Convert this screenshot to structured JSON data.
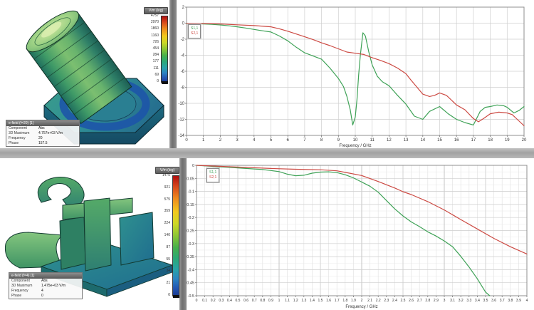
{
  "colors": {
    "curve_green": "#3fa257",
    "curve_red": "#cc4a43",
    "grid_minor": "#e4e4e4",
    "grid": "#cfcfcf",
    "grid_major": "#adadad",
    "plot_border": "#8f8f8f",
    "splitter": "#7a7a7a"
  },
  "panels": {
    "top_3d": {
      "model": "sealing-plug-bolt-efield",
      "colorbar": {
        "title": "V/m (log)",
        "values": [
          "4757",
          "2970",
          "1860",
          "1160",
          "726",
          "454",
          "284",
          "177",
          "111",
          "69",
          "0"
        ]
      },
      "info": {
        "header": "e-field (f=20) [1]",
        "rows": [
          {
            "label": "Component",
            "value": "Abs"
          },
          {
            "label": "3D Maximum",
            "value": "4.757e+03 V/m"
          },
          {
            "label": "Frequency",
            "value": "20"
          },
          {
            "label": "Phase",
            "value": "157.5"
          }
        ]
      }
    },
    "bottom_3d": {
      "model": "retaining-clip-efield",
      "colorbar": {
        "title": "V/m (log)",
        "values": [
          "1475",
          "921",
          "575",
          "359",
          "224",
          "140",
          "87",
          "55",
          "34",
          "21",
          "0"
        ]
      },
      "info": {
        "header": "e-field (f=4) [1]",
        "rows": [
          {
            "label": "Component",
            "value": "Abs"
          },
          {
            "label": "3D Maximum",
            "value": "1.475e+03 V/m"
          },
          {
            "label": "Frequency",
            "value": "4"
          },
          {
            "label": "Phase",
            "value": "0"
          }
        ]
      }
    }
  },
  "chart_data": [
    {
      "type": "line",
      "title": "",
      "xlabel": "Frequency / GHz",
      "ylabel": "",
      "xlim": [
        0,
        20
      ],
      "ylim": [
        -14,
        2
      ],
      "grid": true,
      "legend_position": "top-left",
      "x_ticks": [
        0,
        1,
        2,
        3,
        4,
        5,
        6,
        7,
        8,
        9,
        10,
        11,
        12,
        13,
        14,
        15,
        16,
        17,
        18,
        19,
        20
      ],
      "x_tick_labels": [
        "0",
        "1",
        "2",
        "3",
        "4",
        "5",
        "6",
        "7",
        "8",
        "9",
        "10",
        "11",
        "12",
        "13",
        "14",
        "15",
        "16",
        "17",
        "18",
        "19",
        "20"
      ],
      "y_ticks": [
        2,
        0,
        -2,
        -4,
        -6,
        -8,
        -10,
        -12,
        -14
      ],
      "y_tick_labels": [
        "2",
        "0",
        "-2",
        "-4",
        "-6",
        "-8",
        "-10",
        "-12",
        "-14"
      ],
      "series": [
        {
          "name": "S1,1",
          "color": "#3fa257",
          "points": [
            [
              0,
              -0.05
            ],
            [
              0.5,
              -0.06
            ],
            [
              1,
              -0.1
            ],
            [
              1.5,
              -0.15
            ],
            [
              2,
              -0.22
            ],
            [
              2.5,
              -0.33
            ],
            [
              3,
              -0.45
            ],
            [
              3.5,
              -0.6
            ],
            [
              4,
              -0.78
            ],
            [
              4.5,
              -0.95
            ],
            [
              5,
              -1.1
            ],
            [
              5.5,
              -1.6
            ],
            [
              6,
              -2.2
            ],
            [
              6.5,
              -3.0
            ],
            [
              7,
              -3.7
            ],
            [
              7.5,
              -4.1
            ],
            [
              8,
              -4.5
            ],
            [
              8.5,
              -5.6
            ],
            [
              9,
              -6.9
            ],
            [
              9.3,
              -7.9
            ],
            [
              9.5,
              -9.1
            ],
            [
              9.7,
              -10.8
            ],
            [
              9.85,
              -12.7
            ],
            [
              10,
              -11.7
            ],
            [
              10.1,
              -9.5
            ],
            [
              10.2,
              -6.5
            ],
            [
              10.3,
              -4.0
            ],
            [
              10.45,
              -1.2
            ],
            [
              10.6,
              -1.6
            ],
            [
              10.8,
              -3.6
            ],
            [
              11,
              -5.2
            ],
            [
              11.3,
              -6.6
            ],
            [
              11.6,
              -7.3
            ],
            [
              12,
              -7.8
            ],
            [
              12.5,
              -9.0
            ],
            [
              13,
              -10.1
            ],
            [
              13.5,
              -11.6
            ],
            [
              14,
              -12.0
            ],
            [
              14.4,
              -11.0
            ],
            [
              15,
              -10.4
            ],
            [
              15.5,
              -11.3
            ],
            [
              16,
              -12.0
            ],
            [
              16.5,
              -12.4
            ],
            [
              17,
              -12.7
            ],
            [
              17.4,
              -11.0
            ],
            [
              17.7,
              -10.5
            ],
            [
              18,
              -10.4
            ],
            [
              18.4,
              -10.2
            ],
            [
              18.8,
              -10.3
            ],
            [
              19,
              -10.5
            ],
            [
              19.4,
              -11.2
            ],
            [
              19.7,
              -10.9
            ],
            [
              20,
              -10.4
            ]
          ]
        },
        {
          "name": "S2,1",
          "color": "#cc4a43",
          "points": [
            [
              0,
              -0.02
            ],
            [
              1,
              -0.05
            ],
            [
              2,
              -0.1
            ],
            [
              3,
              -0.2
            ],
            [
              4,
              -0.3
            ],
            [
              5,
              -0.45
            ],
            [
              5.5,
              -0.7
            ],
            [
              6,
              -1.0
            ],
            [
              6.5,
              -1.35
            ],
            [
              7,
              -1.7
            ],
            [
              7.5,
              -2.05
            ],
            [
              8,
              -2.45
            ],
            [
              8.5,
              -2.8
            ],
            [
              9,
              -3.2
            ],
            [
              9.5,
              -3.6
            ],
            [
              10,
              -3.75
            ],
            [
              10.5,
              -3.9
            ],
            [
              11,
              -4.3
            ],
            [
              11.5,
              -4.65
            ],
            [
              12,
              -5.05
            ],
            [
              12.5,
              -5.6
            ],
            [
              13,
              -6.3
            ],
            [
              13.3,
              -7.1
            ],
            [
              13.7,
              -8.1
            ],
            [
              14,
              -8.85
            ],
            [
              14.4,
              -9.15
            ],
            [
              14.7,
              -9.0
            ],
            [
              15,
              -8.7
            ],
            [
              15.4,
              -9.0
            ],
            [
              15.7,
              -9.6
            ],
            [
              16,
              -10.2
            ],
            [
              16.5,
              -10.8
            ],
            [
              17,
              -11.9
            ],
            [
              17.3,
              -12.3
            ],
            [
              17.6,
              -11.9
            ],
            [
              18,
              -11.3
            ],
            [
              18.5,
              -11.1
            ],
            [
              19,
              -11.2
            ],
            [
              19.3,
              -11.4
            ],
            [
              19.6,
              -12.0
            ],
            [
              20,
              -12.8
            ]
          ]
        }
      ]
    },
    {
      "type": "line",
      "title": "",
      "xlabel": "Frequency / GHz",
      "ylabel": "",
      "xlim": [
        0,
        4
      ],
      "ylim": [
        -0.5,
        0
      ],
      "grid": true,
      "legend_position": "top-left",
      "x_ticks": [
        0,
        0.1,
        0.2,
        0.3,
        0.4,
        0.5,
        0.6,
        0.7,
        0.8,
        0.9,
        1,
        1.1,
        1.2,
        1.3,
        1.4,
        1.5,
        1.6,
        1.7,
        1.8,
        1.9,
        2,
        2.1,
        2.2,
        2.3,
        2.4,
        2.5,
        2.6,
        2.7,
        2.8,
        2.9,
        3,
        3.1,
        3.2,
        3.3,
        3.4,
        3.5,
        3.6,
        3.7,
        3.8,
        3.9,
        4
      ],
      "x_tick_labels": [
        "0",
        "0.1",
        "0.2",
        "0.3",
        "0.4",
        "0.5",
        "0.6",
        "0.7",
        "0.8",
        "0.9",
        "1",
        "1.1",
        "1.2",
        "1.3",
        "1.4",
        "1.5",
        "1.6",
        "1.7",
        "1.8",
        "1.9",
        "2",
        "2.1",
        "2.2",
        "2.3",
        "2.4",
        "2.5",
        "2.6",
        "2.7",
        "2.8",
        "2.9",
        "3",
        "3.1",
        "3.2",
        "3.3",
        "3.4",
        "3.5",
        "3.6",
        "3.7",
        "3.8",
        "3.9",
        "4"
      ],
      "y_ticks": [
        0,
        -0.05,
        -0.1,
        -0.15,
        -0.2,
        -0.25,
        -0.3,
        -0.35,
        -0.4,
        -0.45,
        -0.5
      ],
      "y_tick_labels": [
        "0",
        "-0.05",
        "-0.1",
        "-0.15",
        "-0.2",
        "-0.25",
        "-0.3",
        "-0.35",
        "-0.4",
        "-0.45",
        "-0.5"
      ],
      "y_minor_step": 0.025,
      "series": [
        {
          "name": "S1,1",
          "color": "#3fa257",
          "points": [
            [
              0,
              0
            ],
            [
              0.2,
              -0.004
            ],
            [
              0.4,
              -0.008
            ],
            [
              0.6,
              -0.012
            ],
            [
              0.8,
              -0.016
            ],
            [
              0.9,
              -0.02
            ],
            [
              1,
              -0.024
            ],
            [
              1.1,
              -0.034
            ],
            [
              1.2,
              -0.04
            ],
            [
              1.3,
              -0.038
            ],
            [
              1.4,
              -0.03
            ],
            [
              1.5,
              -0.026
            ],
            [
              1.6,
              -0.025
            ],
            [
              1.7,
              -0.028
            ],
            [
              1.8,
              -0.036
            ],
            [
              1.9,
              -0.048
            ],
            [
              2,
              -0.064
            ],
            [
              2.1,
              -0.08
            ],
            [
              2.2,
              -0.103
            ],
            [
              2.3,
              -0.135
            ],
            [
              2.4,
              -0.167
            ],
            [
              2.5,
              -0.194
            ],
            [
              2.6,
              -0.217
            ],
            [
              2.7,
              -0.235
            ],
            [
              2.8,
              -0.255
            ],
            [
              2.9,
              -0.271
            ],
            [
              3,
              -0.29
            ],
            [
              3.1,
              -0.312
            ],
            [
              3.2,
              -0.349
            ],
            [
              3.3,
              -0.39
            ],
            [
              3.4,
              -0.435
            ],
            [
              3.5,
              -0.486
            ],
            [
              3.55,
              -0.5
            ]
          ]
        },
        {
          "name": "S2,1",
          "color": "#cc4a43",
          "points": [
            [
              0,
              0
            ],
            [
              0.3,
              -0.004
            ],
            [
              0.6,
              -0.008
            ],
            [
              0.9,
              -0.012
            ],
            [
              1.2,
              -0.015
            ],
            [
              1.5,
              -0.017
            ],
            [
              1.7,
              -0.021
            ],
            [
              1.8,
              -0.027
            ],
            [
              2,
              -0.039
            ],
            [
              2.2,
              -0.062
            ],
            [
              2.4,
              -0.087
            ],
            [
              2.5,
              -0.101
            ],
            [
              2.6,
              -0.112
            ],
            [
              2.8,
              -0.139
            ],
            [
              3,
              -0.171
            ],
            [
              3.2,
              -0.208
            ],
            [
              3.4,
              -0.244
            ],
            [
              3.6,
              -0.28
            ],
            [
              3.8,
              -0.312
            ],
            [
              4,
              -0.34
            ]
          ]
        }
      ]
    }
  ]
}
